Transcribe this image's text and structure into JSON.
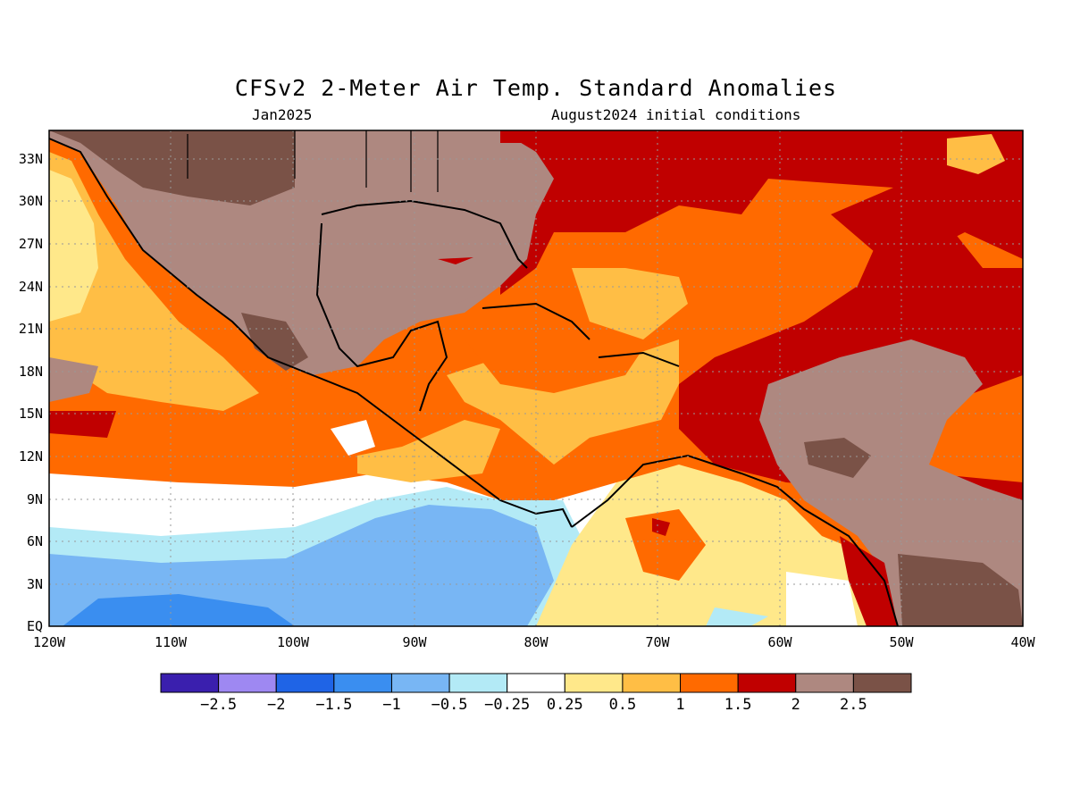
{
  "title": "CFSv2 2-Meter Air Temp. Standard Anomalies",
  "subtitle_left": "Jan2025",
  "subtitle_right": "August2024 initial conditions",
  "map": {
    "lon_range": [
      -120,
      -40
    ],
    "lat_range": [
      0,
      35
    ],
    "lat_ticks": [
      "EQ",
      "3N",
      "6N",
      "9N",
      "12N",
      "15N",
      "18N",
      "21N",
      "24N",
      "27N",
      "30N",
      "33N"
    ],
    "lon_ticks": [
      "120W",
      "110W",
      "100W",
      "90W",
      "80W",
      "70W",
      "60W",
      "50W",
      "40W"
    ],
    "grid": true,
    "grid_style": "dotted"
  },
  "colorbar": {
    "bins": [
      {
        "color": "#3a1fae"
      },
      {
        "color": "#9e88f2"
      },
      {
        "color": "#1f64e6"
      },
      {
        "color": "#3a8ef0"
      },
      {
        "color": "#78b6f4"
      },
      {
        "color": "#b3eaf6"
      },
      {
        "color": "#ffffff"
      },
      {
        "color": "#ffe88a"
      },
      {
        "color": "#ffbe45"
      },
      {
        "color": "#ff6a00"
      },
      {
        "color": "#c00000"
      },
      {
        "color": "#ae8880"
      },
      {
        "color": "#7a5247"
      }
    ],
    "labels": [
      "−2.5",
      "−2",
      "−1.5",
      "−1",
      "−0.5",
      "−0.25",
      "0.25",
      "0.5",
      "1",
      "1.5",
      "2",
      "2.5"
    ]
  },
  "colors": {
    "very_strong_warm": "#7a5247",
    "strong_warm": "#ae8880",
    "warm_2": "#c00000",
    "warm_15": "#ff6a00",
    "warm_1": "#ffbe45",
    "warm_05": "#ffe88a",
    "neutral": "#ffffff",
    "cool_025": "#b3eaf6",
    "cool_05": "#78b6f4",
    "cool_1": "#3a8ef0"
  }
}
